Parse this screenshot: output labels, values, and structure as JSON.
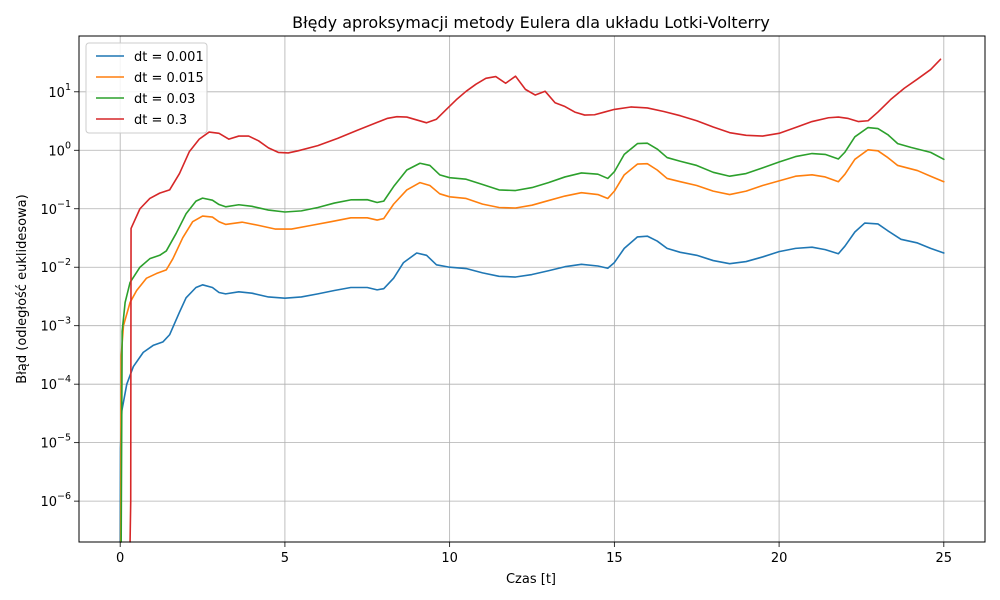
{
  "chart_data": {
    "type": "line",
    "title": "Błędy aproksymacji metody Eulera dla układu Lotki-Volterry",
    "xlabel": "Czas [t]",
    "ylabel": "Błąd (odległość euklidesowa)",
    "xlim": [
      -1.25,
      26.25
    ],
    "ylim": [
      2e-07,
      90
    ],
    "yscale": "log",
    "grid": true,
    "legend_position": "top-left",
    "x_ticks": [
      0,
      5,
      10,
      15,
      20,
      25
    ],
    "x_tick_labels": [
      "0",
      "5",
      "10",
      "15",
      "20",
      "25"
    ],
    "y_ticks": [
      1e-06,
      1e-05,
      0.0001,
      0.001,
      0.01,
      0.1,
      1,
      10
    ],
    "y_tick_labels": [
      {
        "base": "10",
        "exp": "−6"
      },
      {
        "base": "10",
        "exp": "−5"
      },
      {
        "base": "10",
        "exp": "−4"
      },
      {
        "base": "10",
        "exp": "−3"
      },
      {
        "base": "10",
        "exp": "−2"
      },
      {
        "base": "10",
        "exp": "−1"
      },
      {
        "base": "10",
        "exp": "0"
      },
      {
        "base": "10",
        "exp": "1"
      }
    ],
    "series": [
      {
        "name": "dt = 0.001",
        "color": "#1f77b4",
        "points": [
          [
            0.001,
            2e-07
          ],
          [
            0.01,
            8e-06
          ],
          [
            0.05,
            3.5e-05
          ],
          [
            0.2,
            0.0001
          ],
          [
            0.4,
            0.0002
          ],
          [
            0.7,
            0.00035
          ],
          [
            1.0,
            0.00046
          ],
          [
            1.3,
            0.00053
          ],
          [
            1.5,
            0.0007
          ],
          [
            1.8,
            0.0017
          ],
          [
            2.0,
            0.003
          ],
          [
            2.3,
            0.0045
          ],
          [
            2.5,
            0.005
          ],
          [
            2.8,
            0.0045
          ],
          [
            3.0,
            0.0037
          ],
          [
            3.2,
            0.0035
          ],
          [
            3.6,
            0.0038
          ],
          [
            4.0,
            0.0036
          ],
          [
            4.5,
            0.0031
          ],
          [
            5.0,
            0.00295
          ],
          [
            5.5,
            0.0031
          ],
          [
            6.0,
            0.0035
          ],
          [
            6.5,
            0.004
          ],
          [
            7.0,
            0.0045
          ],
          [
            7.5,
            0.0045
          ],
          [
            7.8,
            0.0041
          ],
          [
            8.0,
            0.0043
          ],
          [
            8.3,
            0.0065
          ],
          [
            8.6,
            0.012
          ],
          [
            9.0,
            0.0175
          ],
          [
            9.3,
            0.016
          ],
          [
            9.6,
            0.011
          ],
          [
            10.0,
            0.01
          ],
          [
            10.5,
            0.0095
          ],
          [
            11.0,
            0.008
          ],
          [
            11.5,
            0.007
          ],
          [
            12.0,
            0.0068
          ],
          [
            12.5,
            0.0075
          ],
          [
            13.0,
            0.0087
          ],
          [
            13.5,
            0.0102
          ],
          [
            14.0,
            0.0112
          ],
          [
            14.5,
            0.0105
          ],
          [
            14.8,
            0.0096
          ],
          [
            15.0,
            0.012
          ],
          [
            15.3,
            0.021
          ],
          [
            15.7,
            0.033
          ],
          [
            16.0,
            0.034
          ],
          [
            16.3,
            0.028
          ],
          [
            16.6,
            0.021
          ],
          [
            17.0,
            0.018
          ],
          [
            17.5,
            0.016
          ],
          [
            18.0,
            0.013
          ],
          [
            18.5,
            0.0115
          ],
          [
            19.0,
            0.0125
          ],
          [
            19.5,
            0.015
          ],
          [
            20.0,
            0.0185
          ],
          [
            20.5,
            0.021
          ],
          [
            21.0,
            0.022
          ],
          [
            21.4,
            0.02
          ],
          [
            21.8,
            0.017
          ],
          [
            22.0,
            0.023
          ],
          [
            22.3,
            0.04
          ],
          [
            22.6,
            0.057
          ],
          [
            23.0,
            0.055
          ],
          [
            23.3,
            0.042
          ],
          [
            23.7,
            0.03
          ],
          [
            24.2,
            0.026
          ],
          [
            24.6,
            0.021
          ],
          [
            25.0,
            0.0175
          ]
        ]
      },
      {
        "name": "dt = 0.015",
        "color": "#ff7f0e",
        "points": [
          [
            0.015,
            2e-07
          ],
          [
            0.03,
            0.0003
          ],
          [
            0.1,
            0.001
          ],
          [
            0.3,
            0.0025
          ],
          [
            0.5,
            0.004
          ],
          [
            0.8,
            0.0065
          ],
          [
            1.1,
            0.0078
          ],
          [
            1.4,
            0.009
          ],
          [
            1.6,
            0.014
          ],
          [
            1.9,
            0.032
          ],
          [
            2.2,
            0.06
          ],
          [
            2.5,
            0.075
          ],
          [
            2.8,
            0.072
          ],
          [
            3.0,
            0.06
          ],
          [
            3.2,
            0.054
          ],
          [
            3.7,
            0.059
          ],
          [
            4.2,
            0.052
          ],
          [
            4.7,
            0.045
          ],
          [
            5.2,
            0.045
          ],
          [
            5.8,
            0.052
          ],
          [
            6.4,
            0.06
          ],
          [
            7.0,
            0.07
          ],
          [
            7.5,
            0.07
          ],
          [
            7.8,
            0.064
          ],
          [
            8.0,
            0.068
          ],
          [
            8.3,
            0.12
          ],
          [
            8.7,
            0.21
          ],
          [
            9.1,
            0.28
          ],
          [
            9.4,
            0.25
          ],
          [
            9.7,
            0.18
          ],
          [
            10.0,
            0.16
          ],
          [
            10.5,
            0.15
          ],
          [
            11.0,
            0.12
          ],
          [
            11.5,
            0.105
          ],
          [
            12.0,
            0.103
          ],
          [
            12.5,
            0.115
          ],
          [
            13.0,
            0.138
          ],
          [
            13.5,
            0.165
          ],
          [
            14.0,
            0.188
          ],
          [
            14.5,
            0.175
          ],
          [
            14.8,
            0.15
          ],
          [
            15.0,
            0.2
          ],
          [
            15.3,
            0.38
          ],
          [
            15.7,
            0.58
          ],
          [
            16.0,
            0.59
          ],
          [
            16.3,
            0.46
          ],
          [
            16.6,
            0.33
          ],
          [
            17.0,
            0.29
          ],
          [
            17.5,
            0.25
          ],
          [
            18.0,
            0.2
          ],
          [
            18.5,
            0.175
          ],
          [
            19.0,
            0.2
          ],
          [
            19.5,
            0.25
          ],
          [
            20.0,
            0.3
          ],
          [
            20.5,
            0.36
          ],
          [
            21.0,
            0.38
          ],
          [
            21.4,
            0.35
          ],
          [
            21.8,
            0.29
          ],
          [
            22.0,
            0.39
          ],
          [
            22.3,
            0.7
          ],
          [
            22.7,
            1.02
          ],
          [
            23.0,
            0.98
          ],
          [
            23.3,
            0.75
          ],
          [
            23.6,
            0.55
          ],
          [
            24.2,
            0.45
          ],
          [
            24.6,
            0.36
          ],
          [
            25.0,
            0.29
          ]
        ]
      },
      {
        "name": "dt = 0.03",
        "color": "#2ca02c",
        "points": [
          [
            0.03,
            2e-07
          ],
          [
            0.06,
            0.0008
          ],
          [
            0.15,
            0.0025
          ],
          [
            0.3,
            0.0055
          ],
          [
            0.6,
            0.01
          ],
          [
            0.9,
            0.014
          ],
          [
            1.2,
            0.016
          ],
          [
            1.4,
            0.019
          ],
          [
            1.7,
            0.038
          ],
          [
            2.0,
            0.082
          ],
          [
            2.3,
            0.135
          ],
          [
            2.5,
            0.152
          ],
          [
            2.8,
            0.14
          ],
          [
            3.0,
            0.118
          ],
          [
            3.2,
            0.108
          ],
          [
            3.6,
            0.117
          ],
          [
            4.0,
            0.11
          ],
          [
            4.5,
            0.095
          ],
          [
            5.0,
            0.088
          ],
          [
            5.5,
            0.092
          ],
          [
            6.0,
            0.105
          ],
          [
            6.5,
            0.125
          ],
          [
            7.0,
            0.142
          ],
          [
            7.5,
            0.143
          ],
          [
            7.8,
            0.128
          ],
          [
            8.0,
            0.135
          ],
          [
            8.3,
            0.24
          ],
          [
            8.7,
            0.46
          ],
          [
            9.1,
            0.6
          ],
          [
            9.4,
            0.55
          ],
          [
            9.7,
            0.38
          ],
          [
            10.0,
            0.34
          ],
          [
            10.5,
            0.32
          ],
          [
            11.0,
            0.26
          ],
          [
            11.5,
            0.21
          ],
          [
            12.0,
            0.205
          ],
          [
            12.5,
            0.23
          ],
          [
            13.0,
            0.28
          ],
          [
            13.5,
            0.35
          ],
          [
            14.0,
            0.41
          ],
          [
            14.5,
            0.39
          ],
          [
            14.8,
            0.33
          ],
          [
            15.0,
            0.43
          ],
          [
            15.3,
            0.85
          ],
          [
            15.7,
            1.3
          ],
          [
            16.0,
            1.32
          ],
          [
            16.3,
            1.05
          ],
          [
            16.6,
            0.75
          ],
          [
            17.0,
            0.65
          ],
          [
            17.5,
            0.55
          ],
          [
            18.0,
            0.42
          ],
          [
            18.5,
            0.36
          ],
          [
            19.0,
            0.4
          ],
          [
            19.5,
            0.5
          ],
          [
            20.0,
            0.63
          ],
          [
            20.5,
            0.78
          ],
          [
            21.0,
            0.88
          ],
          [
            21.4,
            0.85
          ],
          [
            21.8,
            0.71
          ],
          [
            22.0,
            0.93
          ],
          [
            22.3,
            1.7
          ],
          [
            22.7,
            2.45
          ],
          [
            23.0,
            2.35
          ],
          [
            23.3,
            1.85
          ],
          [
            23.6,
            1.3
          ],
          [
            24.0,
            1.12
          ],
          [
            24.6,
            0.92
          ],
          [
            25.0,
            0.7
          ]
        ]
      },
      {
        "name": "dt = 0.3",
        "color": "#d62728",
        "points": [
          [
            0.3,
            2e-07
          ],
          [
            0.32,
            1e-06
          ],
          [
            0.33,
            0.046
          ],
          [
            0.6,
            0.1
          ],
          [
            0.9,
            0.15
          ],
          [
            1.2,
            0.185
          ],
          [
            1.5,
            0.21
          ],
          [
            1.8,
            0.4
          ],
          [
            2.1,
            0.95
          ],
          [
            2.4,
            1.55
          ],
          [
            2.7,
            2.05
          ],
          [
            3.0,
            1.95
          ],
          [
            3.3,
            1.55
          ],
          [
            3.6,
            1.75
          ],
          [
            3.9,
            1.75
          ],
          [
            4.2,
            1.45
          ],
          [
            4.5,
            1.1
          ],
          [
            4.8,
            0.92
          ],
          [
            5.1,
            0.9
          ],
          [
            5.4,
            0.98
          ],
          [
            6.0,
            1.2
          ],
          [
            6.6,
            1.6
          ],
          [
            7.2,
            2.2
          ],
          [
            7.8,
            3.0
          ],
          [
            8.1,
            3.5
          ],
          [
            8.4,
            3.75
          ],
          [
            8.7,
            3.7
          ],
          [
            9.0,
            3.3
          ],
          [
            9.3,
            2.95
          ],
          [
            9.6,
            3.4
          ],
          [
            9.9,
            5.0
          ],
          [
            10.2,
            7.3
          ],
          [
            10.5,
            10.2
          ],
          [
            10.8,
            13.5
          ],
          [
            11.1,
            17.0
          ],
          [
            11.4,
            18.2
          ],
          [
            11.7,
            14.0
          ],
          [
            12.0,
            18.5
          ],
          [
            12.3,
            11.0
          ],
          [
            12.6,
            8.8
          ],
          [
            12.9,
            10.2
          ],
          [
            13.2,
            6.5
          ],
          [
            13.5,
            5.6
          ],
          [
            13.8,
            4.5
          ],
          [
            14.1,
            4.0
          ],
          [
            14.4,
            4.05
          ],
          [
            14.7,
            4.5
          ],
          [
            15.0,
            5.0
          ],
          [
            15.5,
            5.5
          ],
          [
            16.0,
            5.3
          ],
          [
            16.5,
            4.6
          ],
          [
            17.0,
            3.9
          ],
          [
            17.5,
            3.2
          ],
          [
            18.0,
            2.5
          ],
          [
            18.5,
            2.0
          ],
          [
            19.0,
            1.8
          ],
          [
            19.5,
            1.75
          ],
          [
            20.0,
            1.95
          ],
          [
            20.5,
            2.45
          ],
          [
            21.0,
            3.1
          ],
          [
            21.5,
            3.6
          ],
          [
            21.8,
            3.7
          ],
          [
            22.1,
            3.5
          ],
          [
            22.4,
            3.1
          ],
          [
            22.7,
            3.2
          ],
          [
            23.0,
            4.5
          ],
          [
            23.4,
            7.5
          ],
          [
            23.8,
            11.5
          ],
          [
            24.2,
            16.5
          ],
          [
            24.6,
            24.0
          ],
          [
            24.9,
            36.0
          ]
        ]
      }
    ]
  }
}
